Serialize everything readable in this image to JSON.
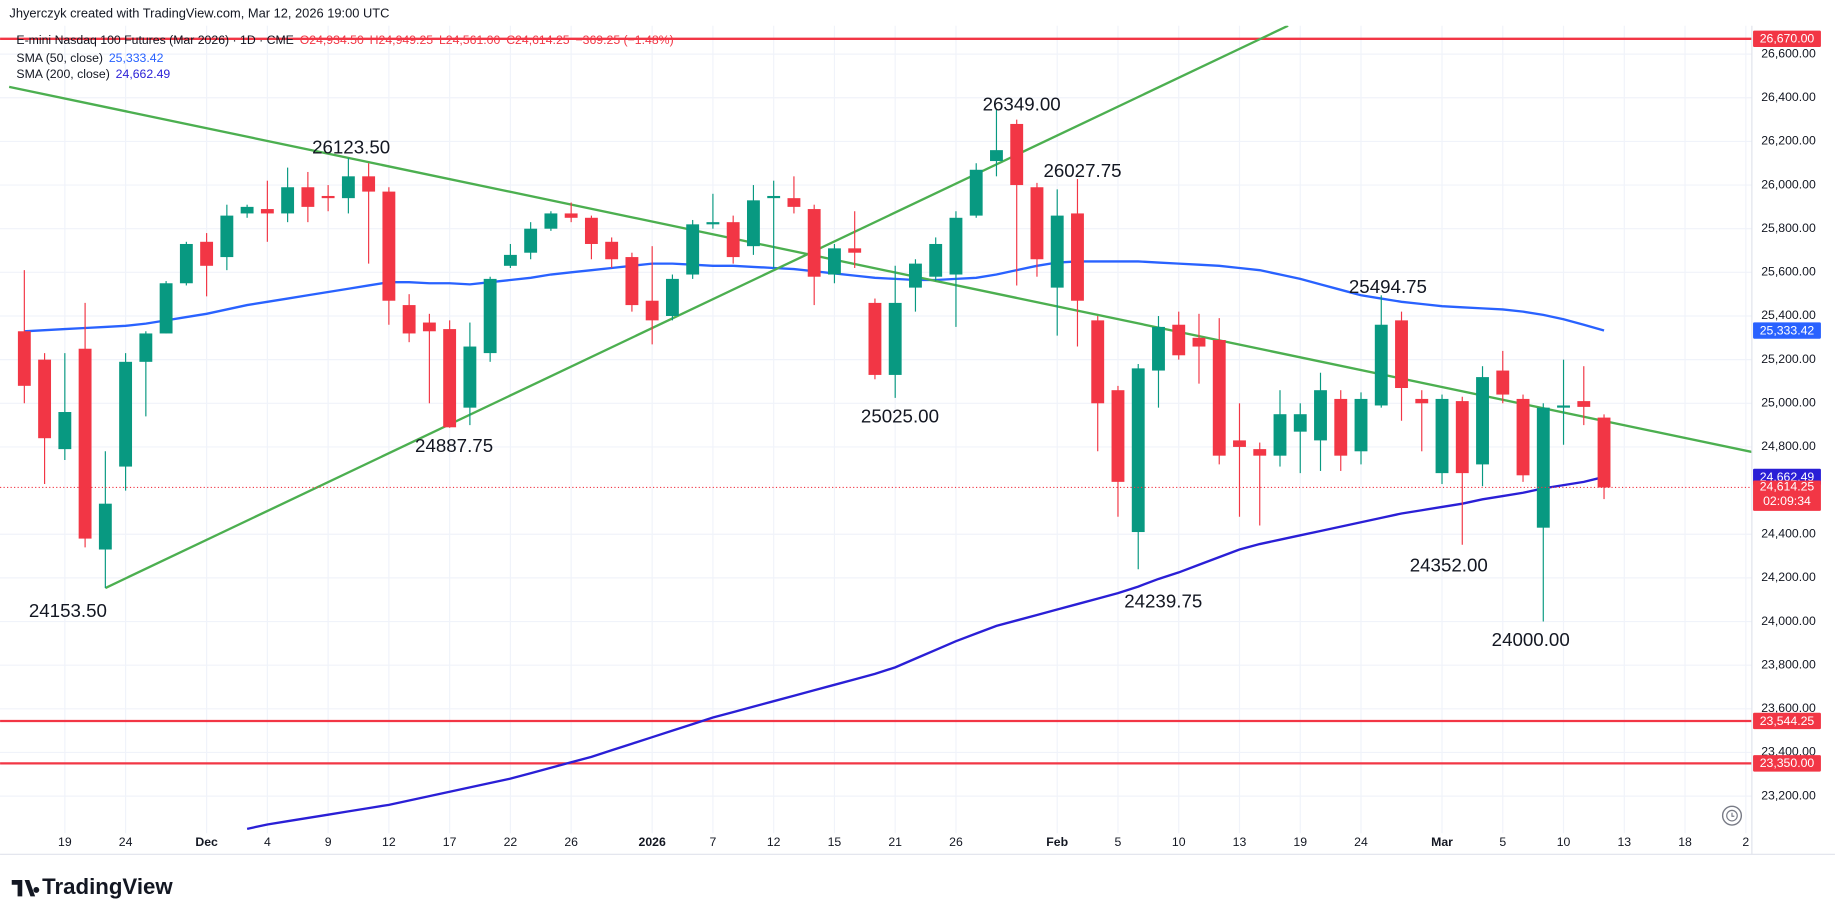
{
  "chart_data": {
    "type": "candlestick",
    "header": "Jhyerczyk created with TradingView.com, Mar 12, 2026 19:00 UTC",
    "title": "E-mini Nasdaq 100 Futures (Mar 2026) · 1D · CME",
    "ohlc_legend": [
      "O24,934.50",
      "H24,949.25",
      "L24,561.00",
      "C24,614.25"
    ],
    "change_label": "−369.25 (−1.48%)",
    "up_color": "#089981",
    "down_color": "#f23645",
    "candles": {
      "open": [
        25330,
        25200,
        24790,
        25250,
        24330,
        24710,
        25190,
        25320,
        25550,
        25740,
        25670,
        25870,
        25890,
        25870,
        25990,
        25950,
        25940,
        26040,
        25970,
        25450,
        25370,
        25340,
        24980,
        25230,
        25630,
        25690,
        25800,
        25870,
        25850,
        25740,
        25670,
        25470,
        25400,
        25590,
        25820,
        25830,
        25720,
        25940,
        25940,
        25890,
        25590,
        25710,
        25460,
        25130,
        25530,
        25580,
        25590,
        25860,
        26110,
        26280,
        25990,
        25530,
        25870,
        25380,
        25060,
        24410,
        25150,
        25360,
        25300,
        25290,
        24830,
        24790,
        24760,
        24870,
        24830,
        25020,
        24780,
        24990,
        25380,
        25020,
        24680,
        25010,
        24720,
        25150,
        25020,
        24430,
        24980,
        25010,
        24934.5
      ],
      "high": [
        25610,
        25230,
        25230,
        25460,
        24780,
        25230,
        25330,
        25560,
        25740,
        25780,
        25910,
        25910,
        26020,
        26080,
        26060,
        26000,
        26123.5,
        26100,
        25990,
        25500,
        25410,
        25380,
        25370,
        25580,
        25730,
        25830,
        25880,
        25920,
        25860,
        25760,
        25690,
        25720,
        25590,
        25840,
        25960,
        25860,
        26000,
        26020,
        26040,
        25910,
        25730,
        25880,
        25480,
        25630,
        25660,
        25760,
        25880,
        26100,
        26349,
        26300,
        26010,
        25980,
        26027.75,
        25400,
        25080,
        25180,
        25400,
        25420,
        25410,
        25390,
        25000,
        24820,
        25060,
        25000,
        25140,
        25060,
        25050,
        25494.75,
        25420,
        25060,
        25040,
        25030,
        25170,
        25240,
        25040,
        25000,
        25200,
        25170,
        24949.25
      ],
      "low": [
        25000,
        24630,
        24740,
        24340,
        24153.5,
        24600,
        24940,
        25320,
        25540,
        25490,
        25610,
        25850,
        25740,
        25830,
        25830,
        25880,
        25870,
        25640,
        25360,
        25280,
        25000,
        24887.75,
        24900,
        25190,
        25620,
        25660,
        25790,
        25830,
        25660,
        25620,
        25420,
        25270,
        25380,
        25570,
        25800,
        25640,
        25680,
        25620,
        25870,
        25450,
        25550,
        25620,
        25110,
        25025,
        25420,
        25560,
        25350,
        25850,
        26040,
        25540,
        25580,
        25310,
        25260,
        24780,
        24480,
        24239.75,
        24980,
        25200,
        25090,
        24720,
        24480,
        24440,
        24710,
        24680,
        24690,
        24690,
        24720,
        24980,
        24920,
        24780,
        24630,
        24352,
        24620,
        25000,
        24640,
        24000,
        24810,
        24900,
        24561
      ],
      "close": [
        25080,
        24840,
        24960,
        24380,
        24540,
        25190,
        25320,
        25550,
        25730,
        25630,
        25860,
        25900,
        25870,
        25990,
        25900,
        25940,
        26040,
        25970,
        25470,
        25320,
        25330,
        24890,
        25260,
        25570,
        25680,
        25800,
        25870,
        25850,
        25730,
        25660,
        25450,
        25380,
        25570,
        25820,
        25830,
        25670,
        25930,
        25950,
        25900,
        25580,
        25710,
        25690,
        25130,
        25460,
        25640,
        25730,
        25850,
        26070,
        26160,
        26000,
        25660,
        25860,
        25470,
        25000,
        24640,
        25160,
        25350,
        25220,
        25260,
        24760,
        24800,
        24760,
        24950,
        24950,
        25060,
        24760,
        25020,
        25360,
        25070,
        25000,
        25020,
        24680,
        25120,
        25040,
        24670,
        24980,
        24990,
        24983.5,
        24614.25
      ]
    },
    "series": [
      {
        "name": "SMA (50, close)",
        "color": "#2962ff",
        "last_label": "25,333.42",
        "values": [
          25330,
          25335,
          25340,
          25345,
          25350,
          25355,
          25365,
          25380,
          25395,
          25410,
          25430,
          25450,
          25465,
          25480,
          25495,
          25510,
          25525,
          25540,
          25555,
          25555,
          25550,
          25550,
          25545,
          25555,
          25565,
          25575,
          25590,
          25600,
          25610,
          25620,
          25630,
          25640,
          25640,
          25635,
          25630,
          25630,
          25625,
          25620,
          25615,
          25605,
          25595,
          25585,
          25575,
          25570,
          25565,
          25565,
          25570,
          25575,
          25590,
          25610,
          25630,
          25645,
          25650,
          25650,
          25650,
          25650,
          25645,
          25640,
          25635,
          25630,
          25620,
          25610,
          25590,
          25570,
          25545,
          25520,
          25495,
          25480,
          25465,
          25455,
          25445,
          25440,
          25435,
          25430,
          25420,
          25405,
          25385,
          25360,
          25333.42
        ]
      },
      {
        "name": "SMA (200, close)",
        "color": "#2a1fd6",
        "last_label": "24,662.49",
        "values": [
          null,
          null,
          null,
          null,
          null,
          null,
          null,
          null,
          null,
          null,
          null,
          23050,
          23070,
          23085,
          23100,
          23115,
          23130,
          23145,
          23160,
          23180,
          23200,
          23220,
          23240,
          23260,
          23280,
          23305,
          23330,
          23355,
          23380,
          23410,
          23440,
          23470,
          23500,
          23530,
          23560,
          23585,
          23610,
          23635,
          23660,
          23685,
          23710,
          23735,
          23760,
          23790,
          23830,
          23870,
          23910,
          23945,
          23980,
          24005,
          24030,
          24055,
          24080,
          24105,
          24130,
          24160,
          24195,
          24225,
          24260,
          24295,
          24330,
          24355,
          24375,
          24395,
          24415,
          24435,
          24455,
          24475,
          24495,
          24510,
          24525,
          24540,
          24560,
          24575,
          24590,
          24610,
          24625,
          24640,
          24662.49
        ]
      }
    ],
    "trendlines": [
      {
        "color": "#4caf50",
        "x": [
          -0.75,
          85.3
        ],
        "y": [
          26450,
          24777
        ]
      },
      {
        "color": "#4caf50",
        "x": [
          4,
          62.4
        ],
        "y": [
          24153.5,
          26730
        ]
      }
    ],
    "levels": [
      {
        "value": 26670,
        "label": "26,670.00",
        "color": "#f23645"
      },
      {
        "value": 23544.25,
        "label": "23,544.25",
        "color": "#f23645"
      },
      {
        "value": 23350,
        "label": "23,350.00",
        "color": "#f23645"
      }
    ],
    "close_label": "24,614.25",
    "countdown": "02:09:34",
    "annotations": [
      "26123.50",
      "24887.75",
      "24153.50",
      "26349.00",
      "26027.75",
      "25025.00",
      "25494.75",
      "24239.75",
      "24352.00",
      "24000.00"
    ],
    "xlim": [
      -1.2,
      85.3
    ],
    "xticks": [
      {
        "value": 2,
        "label": "19"
      },
      {
        "value": 5,
        "label": "24"
      },
      {
        "value": 9,
        "label": "Dec"
      },
      {
        "value": 12,
        "label": "4"
      },
      {
        "value": 15,
        "label": "9"
      },
      {
        "value": 18,
        "label": "12"
      },
      {
        "value": 21,
        "label": "17"
      },
      {
        "value": 24,
        "label": "22"
      },
      {
        "value": 27,
        "label": "26"
      },
      {
        "value": 31,
        "label": "2026"
      },
      {
        "value": 34,
        "label": "7"
      },
      {
        "value": 37,
        "label": "12"
      },
      {
        "value": 40,
        "label": "15"
      },
      {
        "value": 43,
        "label": "21"
      },
      {
        "value": 46,
        "label": "26"
      },
      {
        "value": 51,
        "label": "Feb"
      },
      {
        "value": 54,
        "label": "5"
      },
      {
        "value": 57,
        "label": "10"
      },
      {
        "value": 60,
        "label": "13"
      },
      {
        "value": 63,
        "label": "19"
      },
      {
        "value": 66,
        "label": "24"
      },
      {
        "value": 70,
        "label": "Mar"
      },
      {
        "value": 73,
        "label": "5"
      },
      {
        "value": 76,
        "label": "10"
      },
      {
        "value": 79,
        "label": "13"
      },
      {
        "value": 82,
        "label": "18"
      },
      {
        "value": 85,
        "label": "2"
      }
    ],
    "ylim": [
      23030,
      26730
    ],
    "yticks": [
      {
        "value": 23200,
        "label": "23,200.00"
      },
      {
        "value": 23400,
        "label": "23,400.00"
      },
      {
        "value": 23600,
        "label": "23,600.00"
      },
      {
        "value": 23800,
        "label": "23,800.00"
      },
      {
        "value": 24000,
        "label": "24,000.00"
      },
      {
        "value": 24200,
        "label": "24,200.00"
      },
      {
        "value": 24400,
        "label": "24,400.00"
      },
      {
        "value": 24800,
        "label": "24,800.00"
      },
      {
        "value": 25000,
        "label": "25,000.00"
      },
      {
        "value": 25200,
        "label": "25,200.00"
      },
      {
        "value": 25400,
        "label": "25,400.00"
      },
      {
        "value": 25600,
        "label": "25,600.00"
      },
      {
        "value": 25800,
        "label": "25,800.00"
      },
      {
        "value": 26000,
        "label": "26,000.00"
      },
      {
        "value": 26200,
        "label": "26,200.00"
      },
      {
        "value": 26400,
        "label": "26,400.00"
      },
      {
        "value": 26600,
        "label": "26,600.00"
      }
    ],
    "grid": true,
    "brand": "TradingView"
  }
}
